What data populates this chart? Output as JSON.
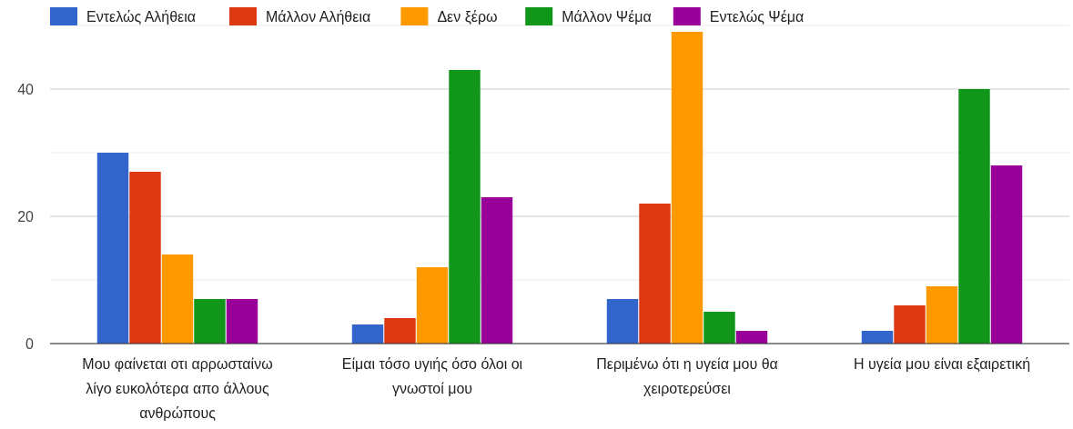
{
  "chart_data": {
    "type": "bar",
    "categories": [
      "Μου φαίνεται οτι αρρωσταίνω λίγο ευκολότερα απο άλλους ανθρώπους",
      "Είμαι τόσο υγιής όσο όλοι οι γνωστοί μου",
      "Περιμένω ότι η υγεία μου θα χειροτερεύσει",
      "Η υγεία μου είναι εξαιρετική"
    ],
    "series": [
      {
        "name": "Εντελώς Αλήθεια",
        "color": "#3366cc",
        "values": [
          30,
          3,
          7,
          2
        ]
      },
      {
        "name": "Μάλλον Αλήθεια",
        "color": "#dc3912",
        "values": [
          27,
          4,
          22,
          6
        ]
      },
      {
        "name": "Δεν ξέρω",
        "color": "#ff9900",
        "values": [
          14,
          12,
          49,
          9
        ]
      },
      {
        "name": "Μάλλον Ψέμα",
        "color": "#109618",
        "values": [
          7,
          43,
          5,
          40
        ]
      },
      {
        "name": "Εντελώς Ψέμα",
        "color": "#990099",
        "values": [
          7,
          23,
          2,
          28
        ]
      }
    ],
    "ylim": [
      0,
      50
    ],
    "yticks": [
      0,
      {
        "value": 10,
        "label": null
      },
      20,
      {
        "value": 30,
        "label": null
      },
      40,
      {
        "value": 50,
        "label": null
      }
    ],
    "grid": true,
    "legend": "top"
  }
}
